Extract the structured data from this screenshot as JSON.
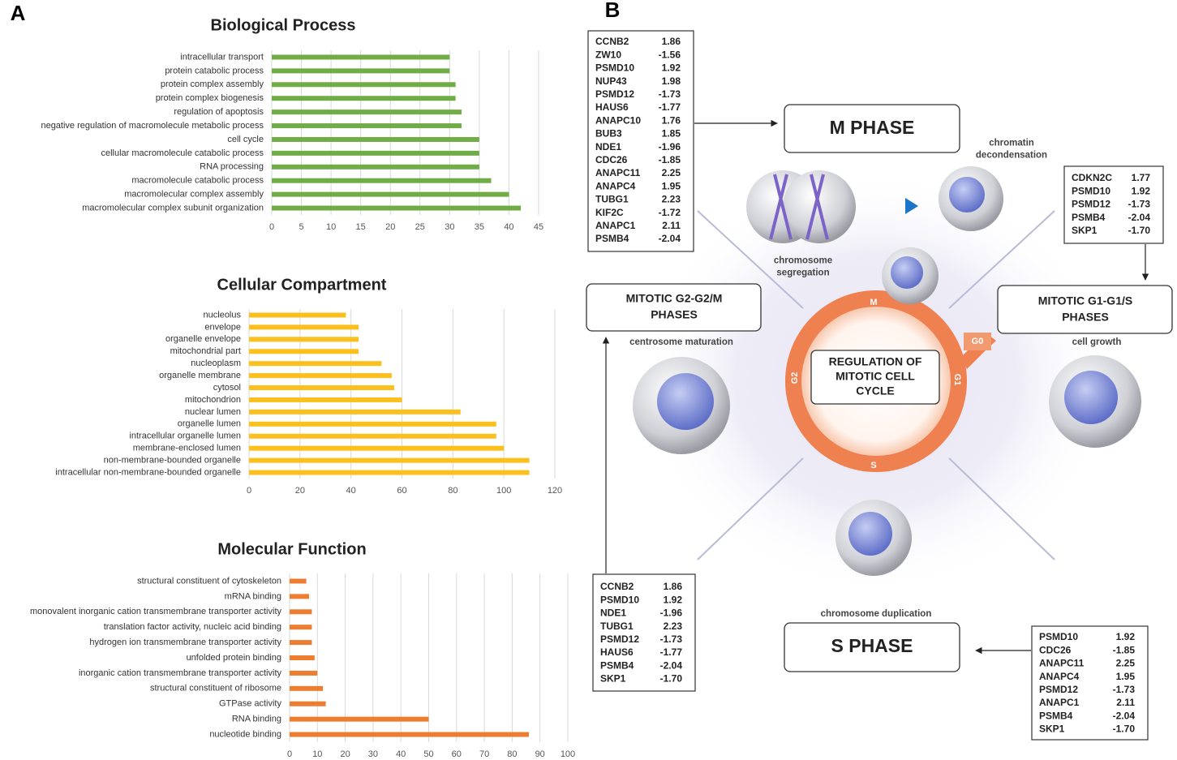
{
  "panel_labels": [
    "A",
    "B"
  ],
  "chart_data": [
    {
      "type": "barh",
      "title": "Biological Process",
      "categories": [
        "intracellular transport",
        "protein catabolic process",
        "protein complex assembly",
        "protein complex biogenesis",
        "regulation of apoptosis",
        "negative regulation of macromolecule metabolic process",
        "cell cycle",
        "cellular macromolecule catabolic process",
        "RNA processing",
        "macromolecule catabolic process",
        "macromolecular complex assembly",
        "macromolecular complex subunit organization"
      ],
      "values": [
        30,
        30,
        31,
        31,
        32,
        32,
        35,
        35,
        35,
        37,
        40,
        42
      ],
      "color": "#70ad47",
      "xlim": [
        0,
        45
      ],
      "xticks": [
        0,
        5,
        10,
        15,
        20,
        25,
        30,
        35,
        40,
        45
      ],
      "grid": true
    },
    {
      "type": "barh",
      "title": "Cellular Compartment",
      "categories": [
        "nucleolus",
        "envelope",
        "organelle envelope",
        "mitochondrial part",
        "nucleoplasm",
        "organelle membrane",
        "cytosol",
        "mitochondrion",
        "nuclear lumen",
        "organelle lumen",
        "intracellular organelle lumen",
        "membrane-enclosed lumen",
        "non-membrane-bounded organelle",
        "intracellular non-membrane-bounded organelle"
      ],
      "values": [
        38,
        43,
        43,
        43,
        52,
        56,
        57,
        60,
        83,
        97,
        97,
        100,
        110,
        110
      ],
      "color": "#fbc01e",
      "xlim": [
        0,
        120
      ],
      "xticks": [
        0,
        20,
        40,
        60,
        80,
        100,
        120
      ],
      "grid": true
    },
    {
      "type": "barh",
      "title": "Molecular Function",
      "categories": [
        "structural constituent of cytoskeleton",
        "mRNA binding",
        "monovalent inorganic cation transmembrane transporter activity",
        "translation factor activity, nucleic acid binding",
        "hydrogen ion transmembrane transporter activity",
        "unfolded protein binding",
        "inorganic cation transmembrane transporter activity",
        "structural constituent of ribosome",
        "GTPase activity",
        "RNA binding",
        "nucleotide binding"
      ],
      "values": [
        6,
        7,
        8,
        8,
        8,
        9,
        10,
        12,
        13,
        50,
        86
      ],
      "color": "#ed7d31",
      "xlim": [
        0,
        100
      ],
      "xticks": [
        0,
        10,
        20,
        30,
        40,
        50,
        60,
        70,
        80,
        90,
        100
      ],
      "grid": true
    }
  ],
  "diagram": {
    "center": [
      "REGULATION OF",
      "MITOTIC CELL",
      "CYCLE"
    ],
    "ring_labels": [
      "M",
      "G1",
      "S",
      "G2",
      "G0"
    ],
    "phases": {
      "m": [
        "M PHASE"
      ],
      "s": [
        "S PHASE"
      ],
      "g2": [
        "MITOTIC G2-G2/M",
        "PHASES"
      ],
      "g1": [
        "MITOTIC G1-G1/S",
        "PHASES"
      ]
    },
    "captions": {
      "decondensation": [
        "chromatin",
        "decondensation"
      ],
      "segregation": [
        "chromosome",
        "segregation"
      ],
      "centrosome": [
        "centrosome maturation"
      ],
      "growth": [
        "cell growth"
      ],
      "duplication": [
        "chromosome duplication"
      ]
    },
    "gene_lists": {
      "m": [
        [
          "CCNB2",
          "1.86"
        ],
        [
          "ZW10",
          "-1.56"
        ],
        [
          "PSMD10",
          "1.92"
        ],
        [
          "NUP43",
          "1.98"
        ],
        [
          "PSMD12",
          "-1.73"
        ],
        [
          "HAUS6",
          "-1.77"
        ],
        [
          "ANAPC10",
          "1.76"
        ],
        [
          "BUB3",
          "1.85"
        ],
        [
          "NDE1",
          "-1.96"
        ],
        [
          "CDC26",
          "-1.85"
        ],
        [
          "ANAPC11",
          "2.25"
        ],
        [
          "ANAPC4",
          "1.95"
        ],
        [
          "TUBG1",
          "2.23"
        ],
        [
          "KIF2C",
          "-1.72"
        ],
        [
          "ANAPC1",
          "2.11"
        ],
        [
          "PSMB4",
          "-2.04"
        ]
      ],
      "g1": [
        [
          "CDKN2C",
          "1.77"
        ],
        [
          "PSMD10",
          "1.92"
        ],
        [
          "PSMD12",
          "-1.73"
        ],
        [
          "PSMB4",
          "-2.04"
        ],
        [
          "SKP1",
          "-1.70"
        ]
      ],
      "g2": [
        [
          "CCNB2",
          "1.86"
        ],
        [
          "PSMD10",
          "1.92"
        ],
        [
          "NDE1",
          "-1.96"
        ],
        [
          "TUBG1",
          "2.23"
        ],
        [
          "PSMD12",
          "-1.73"
        ],
        [
          "HAUS6",
          "-1.77"
        ],
        [
          "PSMB4",
          "-2.04"
        ],
        [
          "SKP1",
          "-1.70"
        ]
      ],
      "s": [
        [
          "PSMD10",
          "1.92"
        ],
        [
          "CDC26",
          "-1.85"
        ],
        [
          "ANAPC11",
          "2.25"
        ],
        [
          "ANAPC4",
          "1.95"
        ],
        [
          "PSMD12",
          "-1.73"
        ],
        [
          "ANAPC1",
          "2.11"
        ],
        [
          "PSMB4",
          "-2.04"
        ],
        [
          "SKP1",
          "-1.70"
        ]
      ]
    }
  }
}
